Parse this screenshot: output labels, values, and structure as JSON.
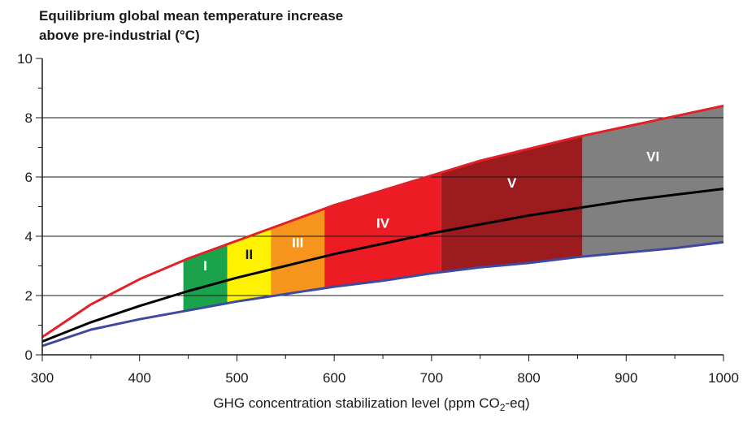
{
  "chart_data": {
    "type": "area",
    "title_line1": "Equilibrium global mean temperature increase",
    "title_line2": "above pre-industrial (°C)",
    "xlabel_main": "GHG concentration stabilization level (ppm CO",
    "xlabel_sub": "2",
    "xlabel_tail": "-eq)",
    "xlim": [
      300,
      1000
    ],
    "ylim": [
      0,
      10
    ],
    "x_ticks": [
      300,
      400,
      500,
      600,
      700,
      800,
      900,
      1000
    ],
    "y_ticks": [
      0,
      2,
      4,
      6,
      8,
      10
    ],
    "grid_y": [
      2,
      4,
      6,
      8
    ],
    "curves": {
      "x": [
        300,
        350,
        400,
        450,
        500,
        550,
        600,
        650,
        700,
        750,
        800,
        850,
        900,
        950,
        1000
      ],
      "upper": [
        0.6,
        1.7,
        2.55,
        3.25,
        3.85,
        4.45,
        5.05,
        5.55,
        6.05,
        6.55,
        6.95,
        7.35,
        7.7,
        8.05,
        8.4
      ],
      "best": [
        0.45,
        1.1,
        1.65,
        2.15,
        2.6,
        3.0,
        3.4,
        3.75,
        4.1,
        4.4,
        4.7,
        4.95,
        5.2,
        5.4,
        5.6
      ],
      "lower": [
        0.3,
        0.85,
        1.2,
        1.5,
        1.8,
        2.05,
        2.3,
        2.5,
        2.75,
        2.95,
        3.1,
        3.3,
        3.45,
        3.6,
        3.8
      ]
    },
    "series": [
      {
        "name": "upper",
        "color": "#e32027"
      },
      {
        "name": "best",
        "color": "#000000"
      },
      {
        "name": "lower",
        "color": "#3d4aa0"
      }
    ],
    "categories": [
      {
        "label": "I",
        "x_start": 445,
        "x_end": 490,
        "color": "#1aa34a"
      },
      {
        "label": "II",
        "x_start": 490,
        "x_end": 535,
        "color": "#fff200"
      },
      {
        "label": "III",
        "x_start": 535,
        "x_end": 590,
        "color": "#f7941d"
      },
      {
        "label": "IV",
        "x_start": 590,
        "x_end": 710,
        "color": "#ed1c24"
      },
      {
        "label": "V",
        "x_start": 710,
        "x_end": 855,
        "color": "#9b1b1f"
      },
      {
        "label": "VI",
        "x_start": 855,
        "x_end": 1000,
        "color": "#808080"
      }
    ],
    "category_label_colors": {
      "I": "#ffffff",
      "II": "#111111",
      "III": "#ffffff",
      "IV": "#ffffff",
      "V": "#ffffff",
      "VI": "#ffffff"
    },
    "grid": true,
    "legend": "none"
  }
}
